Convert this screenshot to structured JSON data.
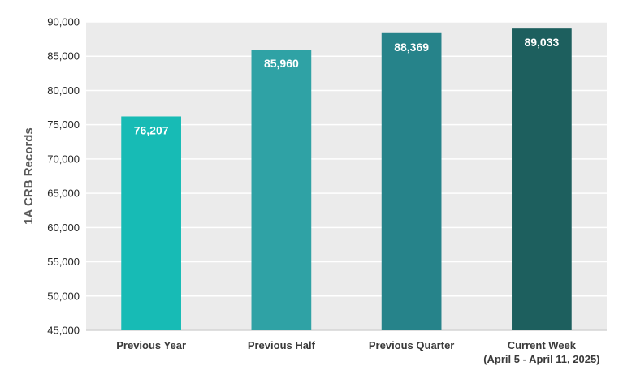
{
  "chart_data": {
    "type": "bar",
    "title": "",
    "xlabel": "",
    "ylabel": "1A CRB Records",
    "categories": [
      [
        "Previous Year"
      ],
      [
        "Previous Half"
      ],
      [
        "Previous Quarter"
      ],
      [
        "Current Week",
        "(April 5 - April 11, 2025)"
      ]
    ],
    "values": [
      76207,
      85960,
      88369,
      89033
    ],
    "value_labels": [
      "76,207",
      "85,960",
      "88,369",
      "89,033"
    ],
    "bar_colors": [
      "#17bbb5",
      "#2fa2a5",
      "#26838a",
      "#1d5f5e"
    ],
    "ylim": [
      45000,
      90000
    ],
    "y_ticks": [
      45000,
      50000,
      55000,
      60000,
      65000,
      70000,
      75000,
      80000,
      85000,
      90000
    ],
    "y_tick_labels": [
      "45,000",
      "50,000",
      "55,000",
      "60,000",
      "65,000",
      "70,000",
      "75,000",
      "80,000",
      "85,000",
      "90,000"
    ],
    "grid": true,
    "legend": "none",
    "plot_background": "#ebebeb"
  }
}
